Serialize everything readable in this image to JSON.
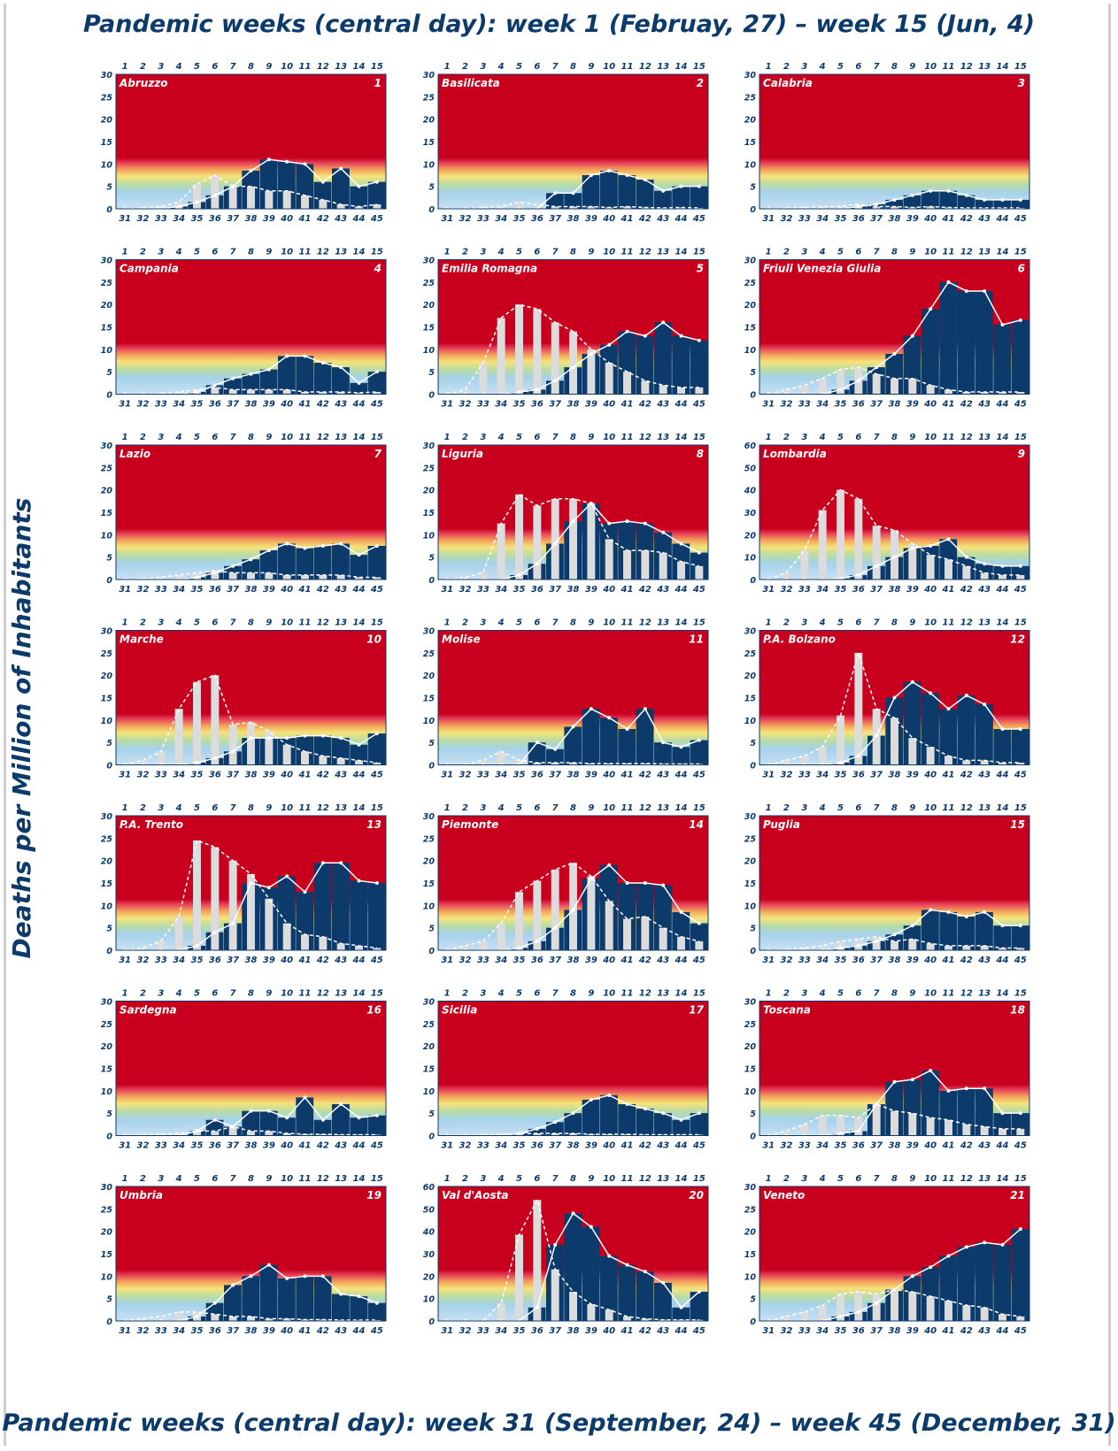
{
  "header": {
    "title": "Pandemic weeks (central day):  week 1 (Februay, 27)  – week 15 (Jun, 4)"
  },
  "footer": {
    "title": "Pandemic weeks (central day):  week 31 (September, 24)  – week 45 (December, 31)"
  },
  "y_axis_title": "Deaths per Million of Inhabitants",
  "colors": {
    "background_red": "#c8001e",
    "dark_bar": "#0b3a6b",
    "light_bar": "#dcdcdc",
    "line": "#ffffff"
  },
  "chart_data": {
    "type": "bar",
    "grid": false,
    "top_x_ticks": [
      "1",
      "2",
      "3",
      "4",
      "5",
      "6",
      "7",
      "8",
      "9",
      "10",
      "11",
      "12",
      "13",
      "14",
      "15"
    ],
    "bottom_x_ticks": [
      "31",
      "32",
      "33",
      "34",
      "35",
      "36",
      "37",
      "38",
      "39",
      "40",
      "41",
      "42",
      "43",
      "44",
      "45"
    ],
    "panels": [
      {
        "name": "Abruzzo",
        "number": "1",
        "ylim": [
          0,
          30
        ],
        "yticks": [
          "0",
          "5",
          "10",
          "15",
          "20",
          "25",
          "30"
        ],
        "first_wave": [
          0,
          0.2,
          0.5,
          1.5,
          5.5,
          7.5,
          5,
          5,
          4,
          4,
          3,
          2,
          1,
          0.5,
          1
        ],
        "second_wave": [
          0,
          0,
          0.1,
          0.5,
          1.5,
          3,
          5,
          8.5,
          11,
          10.5,
          10,
          6,
          9,
          5,
          6
        ]
      },
      {
        "name": "Basilicata",
        "number": "2",
        "ylim": [
          0,
          30
        ],
        "yticks": [
          "0",
          "5",
          "10",
          "15",
          "20",
          "25",
          "30"
        ],
        "first_wave": [
          0,
          0,
          0.3,
          0.5,
          1.5,
          1,
          0.5,
          0.5,
          0.5,
          0.3,
          0.5,
          0.3,
          0.2,
          0.3,
          0.2
        ],
        "second_wave": [
          0,
          0,
          0,
          0,
          0,
          0,
          3.5,
          3.5,
          7.5,
          8.5,
          7.5,
          6.5,
          4,
          5,
          5
        ]
      },
      {
        "name": "Calabria",
        "number": "3",
        "ylim": [
          0,
          30
        ],
        "yticks": [
          "0",
          "5",
          "10",
          "15",
          "20",
          "25",
          "30"
        ],
        "first_wave": [
          0,
          0.2,
          0.3,
          0.5,
          0.5,
          1,
          0.5,
          0.5,
          0.3,
          0.5,
          0.3,
          0.2,
          0.2,
          0.2,
          0.2
        ],
        "second_wave": [
          0,
          0,
          0,
          0,
          0,
          0.5,
          1,
          2,
          3,
          4,
          4,
          3,
          2,
          2,
          2
        ]
      },
      {
        "name": "Campania",
        "number": "4",
        "ylim": [
          0,
          30
        ],
        "yticks": [
          "0",
          "5",
          "10",
          "15",
          "20",
          "25",
          "30"
        ],
        "first_wave": [
          0,
          0,
          0.2,
          0.5,
          1,
          1.5,
          1,
          1,
          1,
          1,
          0.5,
          0.5,
          0.5,
          0.3,
          0.5
        ],
        "second_wave": [
          0,
          0,
          0,
          0,
          0.5,
          2,
          3.5,
          4.5,
          5.5,
          8.5,
          8.5,
          7,
          6,
          2.5,
          5
        ]
      },
      {
        "name": "Emilia Romagna",
        "number": "5",
        "ylim": [
          0,
          30
        ],
        "yticks": [
          "0",
          "5",
          "10",
          "15",
          "20",
          "25",
          "30"
        ],
        "first_wave": [
          0,
          1,
          7,
          17,
          20,
          19,
          16,
          14,
          10,
          7,
          5,
          3,
          2,
          1.5,
          1.5
        ],
        "second_wave": [
          0,
          0,
          0,
          0,
          0.5,
          1,
          3,
          6,
          9,
          11,
          14,
          13,
          16,
          13,
          12
        ]
      },
      {
        "name": "Friuli Venezia Giulia",
        "number": "6",
        "ylim": [
          0,
          30
        ],
        "yticks": [
          "0",
          "5",
          "10",
          "15",
          "20",
          "25",
          "30"
        ],
        "first_wave": [
          0,
          1,
          2,
          3.5,
          5.5,
          6,
          4.5,
          3.5,
          3.5,
          2,
          1,
          0.5,
          0.5,
          0.5,
          0.5
        ],
        "second_wave": [
          0,
          0,
          0,
          0,
          1,
          3,
          6,
          9,
          13,
          19,
          25,
          23,
          23,
          15.5,
          16.5
        ]
      },
      {
        "name": "Lazio",
        "number": "7",
        "ylim": [
          0,
          30
        ],
        "yticks": [
          "0",
          "5",
          "10",
          "15",
          "20",
          "25",
          "30"
        ],
        "first_wave": [
          0,
          0.2,
          0.5,
          1,
          1.5,
          2,
          1.5,
          1.5,
          1.5,
          1,
          1,
          1,
          1,
          0.5,
          0.5
        ],
        "second_wave": [
          0,
          0,
          0,
          0,
          0.5,
          1.5,
          3,
          4.5,
          6.5,
          8,
          7,
          7.5,
          8,
          5.5,
          7.5
        ]
      },
      {
        "name": "Liguria",
        "number": "8",
        "ylim": [
          0,
          30
        ],
        "yticks": [
          "0",
          "5",
          "10",
          "15",
          "20",
          "25",
          "30"
        ],
        "first_wave": [
          0,
          0.5,
          1.5,
          12.5,
          19,
          16.5,
          18,
          18,
          17,
          9,
          6.5,
          6.5,
          6,
          4,
          3
        ],
        "second_wave": [
          0,
          0,
          0,
          0,
          1,
          3.5,
          8,
          13,
          17,
          12.5,
          13,
          12.5,
          10.5,
          8,
          6
        ]
      },
      {
        "name": "Lombardia",
        "number": "9",
        "ylim": [
          0,
          60
        ],
        "yticks": [
          "0",
          "10",
          "20",
          "30",
          "40",
          "50",
          "60"
        ],
        "first_wave": [
          0,
          3,
          13,
          31,
          40,
          36,
          24,
          22,
          16,
          11,
          9,
          6,
          3,
          2,
          2
        ],
        "second_wave": [
          0,
          0,
          0,
          0,
          0.5,
          2,
          6,
          10,
          14,
          15,
          18,
          10,
          7,
          6,
          6
        ]
      },
      {
        "name": "Marche",
        "number": "10",
        "ylim": [
          0,
          30
        ],
        "yticks": [
          "0",
          "5",
          "10",
          "15",
          "20",
          "25",
          "30"
        ],
        "first_wave": [
          0,
          1,
          3,
          12.5,
          18.5,
          20,
          9,
          9.5,
          7.5,
          4.5,
          3,
          2,
          1.5,
          1,
          0.5
        ],
        "second_wave": [
          0,
          0,
          0,
          0,
          0.5,
          1.5,
          3,
          6,
          6,
          6,
          6.5,
          6.5,
          6,
          4.5,
          7
        ]
      },
      {
        "name": "Molise",
        "number": "11",
        "ylim": [
          0,
          30
        ],
        "yticks": [
          "0",
          "5",
          "10",
          "15",
          "20",
          "25",
          "30"
        ],
        "first_wave": [
          0,
          0,
          1,
          3,
          1,
          0.5,
          0.5,
          0.5,
          0.3,
          0.3,
          0.3,
          0.3,
          0.2,
          0.2,
          0.2
        ],
        "second_wave": [
          0,
          0,
          0,
          0,
          0,
          5,
          3.5,
          8.5,
          12.5,
          10.5,
          8,
          12.5,
          5,
          4,
          5.5
        ]
      },
      {
        "name": "P.A. Bolzano",
        "number": "12",
        "ylim": [
          0,
          30
        ],
        "yticks": [
          "0",
          "5",
          "10",
          "15",
          "20",
          "25",
          "30"
        ],
        "first_wave": [
          0,
          1,
          2,
          4,
          11,
          25,
          12.5,
          10.5,
          6,
          4,
          2,
          1,
          1,
          0.5,
          0.5
        ],
        "second_wave": [
          0,
          0,
          0,
          0,
          0.5,
          2,
          6.5,
          15,
          18.5,
          16,
          12.5,
          15.5,
          13.5,
          8,
          8
        ]
      },
      {
        "name": "P.A. Trento",
        "number": "13",
        "ylim": [
          0,
          30
        ],
        "yticks": [
          "0",
          "5",
          "10",
          "15",
          "20",
          "25",
          "30"
        ],
        "first_wave": [
          0,
          0.5,
          2,
          7.5,
          24.5,
          23,
          20,
          17,
          11.5,
          6,
          3.5,
          3,
          1.5,
          1,
          0.5
        ],
        "second_wave": [
          0,
          0,
          0,
          0,
          1,
          4,
          6,
          15,
          14,
          16.5,
          13,
          19.5,
          19.5,
          15.5,
          15
        ]
      },
      {
        "name": "Piemonte",
        "number": "14",
        "ylim": [
          0,
          30
        ],
        "yticks": [
          "0",
          "5",
          "10",
          "15",
          "20",
          "25",
          "30"
        ],
        "first_wave": [
          0,
          1,
          2,
          6,
          13,
          15.5,
          18,
          19.5,
          16.5,
          11,
          7,
          7.5,
          5,
          3,
          2
        ],
        "second_wave": [
          0,
          0,
          0,
          0,
          0.5,
          2,
          5,
          9,
          16,
          19,
          15,
          15,
          14.5,
          8.5,
          6
        ]
      },
      {
        "name": "Puglia",
        "number": "15",
        "ylim": [
          0,
          30
        ],
        "yticks": [
          "0",
          "5",
          "10",
          "15",
          "20",
          "25",
          "30"
        ],
        "first_wave": [
          0,
          0.2,
          0.5,
          1,
          2,
          2.5,
          3,
          2,
          2.5,
          1.5,
          1,
          1,
          1,
          0.5,
          0.5
        ],
        "second_wave": [
          0,
          0,
          0,
          0,
          0.5,
          1,
          2,
          3.5,
          5.5,
          9,
          8.5,
          7.5,
          8.5,
          5.5,
          5.5
        ]
      },
      {
        "name": "Sardegna",
        "number": "16",
        "ylim": [
          0,
          30
        ],
        "yticks": [
          "0",
          "5",
          "10",
          "15",
          "20",
          "25",
          "30"
        ],
        "first_wave": [
          0,
          0.2,
          0.3,
          0.5,
          1,
          1,
          2,
          1,
          1,
          0.5,
          0.3,
          0.3,
          0.2,
          0.2,
          0.2
        ],
        "second_wave": [
          0,
          0,
          0,
          0,
          1,
          3.5,
          2,
          5.5,
          5.5,
          4,
          8.5,
          3.5,
          7,
          4,
          4.5
        ]
      },
      {
        "name": "Sicilia",
        "number": "17",
        "ylim": [
          0,
          30
        ],
        "yticks": [
          "0",
          "5",
          "10",
          "15",
          "20",
          "25",
          "30"
        ],
        "first_wave": [
          0,
          0,
          0.2,
          0.3,
          0.5,
          0.5,
          0.5,
          0.5,
          0.3,
          0.3,
          0.3,
          0.2,
          0.2,
          0.2,
          0.2
        ],
        "second_wave": [
          0,
          0,
          0,
          0,
          0.5,
          1.5,
          3,
          5,
          8,
          9,
          7,
          6,
          5,
          3.5,
          5
        ]
      },
      {
        "name": "Toscana",
        "number": "18",
        "ylim": [
          0,
          30
        ],
        "yticks": [
          "0",
          "5",
          "10",
          "15",
          "20",
          "25",
          "30"
        ],
        "first_wave": [
          0,
          1,
          2.5,
          4.5,
          4.5,
          4,
          7,
          5.5,
          5,
          4,
          3.5,
          2.5,
          2,
          1.5,
          1.5
        ],
        "second_wave": [
          0,
          0,
          0,
          0,
          0.5,
          1,
          7,
          12,
          12.5,
          14.5,
          10,
          10.5,
          10.5,
          5,
          5
        ]
      },
      {
        "name": "Umbria",
        "number": "19",
        "ylim": [
          0,
          30
        ],
        "yticks": [
          "0",
          "5",
          "10",
          "15",
          "20",
          "25",
          "30"
        ],
        "first_wave": [
          0,
          0.5,
          1,
          2,
          2,
          1.5,
          1,
          1,
          0.5,
          0.5,
          0.3,
          0.3,
          0.2,
          0.2,
          0.2
        ],
        "second_wave": [
          0,
          0,
          0,
          0,
          1,
          4,
          8,
          10,
          12.5,
          9.5,
          10,
          10,
          6,
          5.5,
          4
        ]
      },
      {
        "name": "Val d'Aosta",
        "number": "20",
        "ylim": [
          0,
          60
        ],
        "yticks": [
          "0",
          "10",
          "20",
          "30",
          "40",
          "50",
          "60"
        ],
        "first_wave": [
          0,
          0,
          0,
          8,
          38.5,
          54,
          23,
          13,
          7.5,
          5,
          2,
          1,
          0.5,
          0.5,
          0.5
        ],
        "second_wave": [
          0,
          0,
          0,
          0,
          0,
          6,
          34,
          48,
          42,
          29,
          25,
          22,
          17,
          6,
          13
        ]
      },
      {
        "name": "Veneto",
        "number": "21",
        "ylim": [
          0,
          30
        ],
        "yticks": [
          "0",
          "5",
          "10",
          "15",
          "20",
          "25",
          "30"
        ],
        "first_wave": [
          0,
          1,
          2,
          3.5,
          6,
          6.5,
          6,
          7,
          6.5,
          5.5,
          4.5,
          3.5,
          3,
          1.5,
          1
        ],
        "second_wave": [
          0,
          0,
          0,
          0,
          1,
          2,
          4,
          7,
          10,
          12,
          14.5,
          16.5,
          17.5,
          17,
          20.5
        ]
      }
    ]
  }
}
